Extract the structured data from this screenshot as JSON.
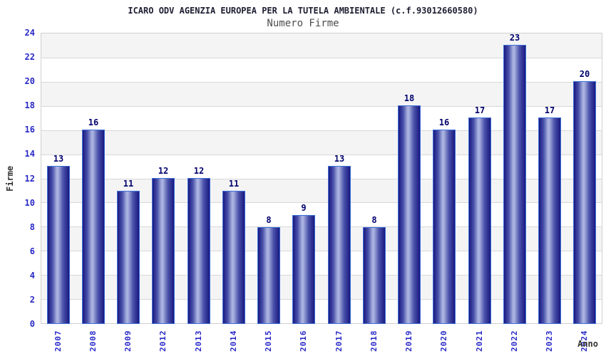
{
  "chart_data": {
    "type": "bar",
    "title": "ICARO ODV AGENZIA EUROPEA PER LA TUTELA AMBIENTALE (c.f.93012660580)",
    "subtitle": "Numero Firme",
    "xlabel": "Anno",
    "ylabel": "Firme",
    "categories": [
      "2007",
      "2008",
      "2009",
      "2012",
      "2013",
      "2014",
      "2015",
      "2016",
      "2017",
      "2018",
      "2019",
      "2020",
      "2021",
      "2022",
      "2023",
      "2024"
    ],
    "values": [
      13,
      16,
      11,
      12,
      12,
      11,
      8,
      9,
      13,
      8,
      18,
      16,
      17,
      23,
      17,
      20
    ],
    "ylim": [
      0,
      24
    ],
    "ytick_step": 2,
    "yticks": [
      0,
      2,
      4,
      6,
      8,
      10,
      12,
      14,
      16,
      18,
      20,
      22,
      24
    ],
    "grid": "horizontal-lines-with-alternating-bands",
    "legend": "none",
    "colors": {
      "bar_border": "#3E6FD8",
      "bar_dark": "#191980",
      "bar_mid": "#4A52AA",
      "bar_light": "#AAB2E0",
      "value_label": "#00006E",
      "tick_label": "#2929C8",
      "band_gray": "#F4F4F4",
      "band_white": "#FFFFFF",
      "grid_line": "#D8D8D8",
      "frame": "#D0D0D0",
      "title": "#1E1E32",
      "subtitle": "#4D4D4D",
      "axis_label": "#333333"
    }
  }
}
